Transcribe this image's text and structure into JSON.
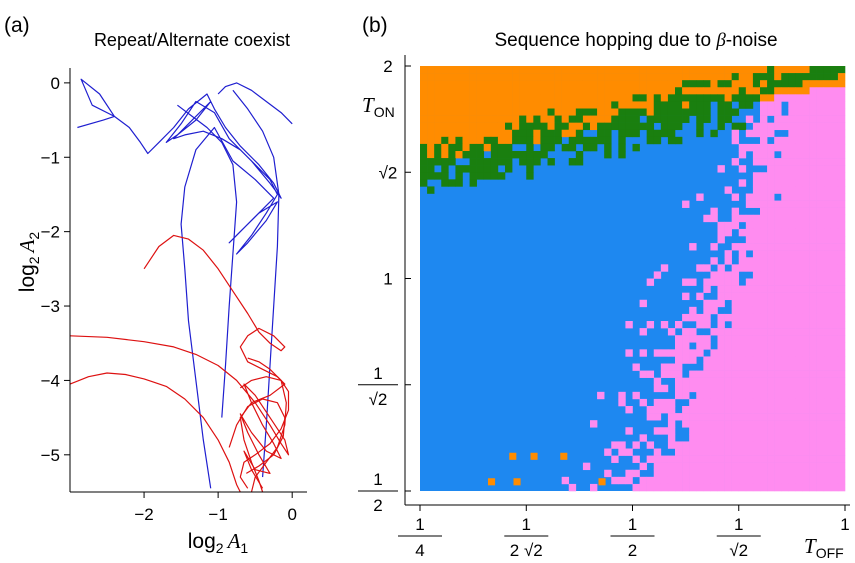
{
  "colors": {
    "orange": "#ff8c00",
    "green": "#1a7f0f",
    "blue": "#1e88f0",
    "pink": "#ff8cf0",
    "line_blue": "#1f1fd0",
    "line_red": "#dd1111"
  },
  "panel_labels": {
    "a": "(a)",
    "b": "(b)"
  },
  "chart_data": [
    {
      "type": "line",
      "title": "Repeat/Alternate coexist",
      "xlabel": {
        "main": "log",
        "sub": "2",
        "var": "A",
        "varsub": "1"
      },
      "ylabel": {
        "main": "log",
        "sub": "2",
        "var": "A",
        "varsub": "2"
      },
      "xlim": [
        -3,
        0.2
      ],
      "ylim": [
        -5.5,
        0.2
      ],
      "xticks": [
        {
          "v": -2,
          "label": "−2"
        },
        {
          "v": -1,
          "label": "−1"
        },
        {
          "v": 0,
          "label": "0"
        }
      ],
      "yticks": [
        {
          "v": 0,
          "label": "0"
        },
        {
          "v": -1,
          "label": "−1"
        },
        {
          "v": -2,
          "label": "−2"
        },
        {
          "v": -3,
          "label": "−3"
        },
        {
          "v": -4,
          "label": "−4"
        },
        {
          "v": -5,
          "label": "−5"
        }
      ],
      "series": [
        {
          "color": "blue",
          "points": [
            [
              -2.9,
              -0.6
            ],
            [
              -2.55,
              -0.5
            ],
            [
              -2.4,
              -0.45
            ],
            [
              -2.6,
              -0.15
            ],
            [
              -2.85,
              0.05
            ],
            [
              -2.7,
              -0.3
            ],
            [
              -2.4,
              -0.45
            ],
            [
              -2.2,
              -0.6
            ],
            [
              -2.05,
              -0.8
            ],
            [
              -1.95,
              -0.95
            ],
            [
              -1.8,
              -0.8
            ],
            [
              -1.6,
              -0.6
            ],
            [
              -1.4,
              -0.35
            ],
            [
              -1.15,
              -0.15
            ],
            [
              -1.05,
              -0.35
            ],
            [
              -0.9,
              -0.6
            ],
            [
              -0.7,
              -0.85
            ],
            [
              -0.45,
              -1.1
            ],
            [
              -0.25,
              -1.35
            ],
            [
              -0.15,
              -1.55
            ],
            [
              -0.3,
              -1.35
            ],
            [
              -0.55,
              -1.05
            ],
            [
              -0.85,
              -0.75
            ],
            [
              -1.05,
              -0.4
            ],
            [
              -1.3,
              -0.25
            ],
            [
              -1.5,
              -0.55
            ],
            [
              -1.7,
              -0.8
            ],
            [
              -1.55,
              -0.7
            ],
            [
              -1.3,
              -0.5
            ],
            [
              -1.1,
              -0.25
            ],
            [
              -1.35,
              -0.5
            ],
            [
              -1.6,
              -0.75
            ],
            [
              -1.45,
              -0.7
            ],
            [
              -1.2,
              -0.65
            ],
            [
              -0.95,
              -0.75
            ],
            [
              -0.7,
              -0.9
            ],
            [
              -0.5,
              -1.1
            ],
            [
              -0.3,
              -1.3
            ],
            [
              -0.2,
              -1.5
            ],
            [
              -0.35,
              -1.75
            ],
            [
              -0.55,
              -2.05
            ],
            [
              -0.75,
              -2.3
            ],
            [
              -0.6,
              -2.15
            ],
            [
              -0.35,
              -1.85
            ],
            [
              -0.2,
              -1.6
            ],
            [
              -0.45,
              -1.75
            ],
            [
              -0.7,
              -2.0
            ],
            [
              -0.85,
              -2.15
            ],
            [
              -0.65,
              -1.95
            ],
            [
              -0.4,
              -1.7
            ],
            [
              -0.25,
              -1.55
            ],
            [
              -0.5,
              -1.3
            ],
            [
              -0.8,
              -1.05
            ],
            [
              -1.05,
              -0.6
            ],
            [
              -1.3,
              -0.9
            ],
            [
              -1.45,
              -1.4
            ],
            [
              -1.5,
              -1.9
            ],
            [
              -1.45,
              -2.5
            ],
            [
              -1.4,
              -3.2
            ],
            [
              -1.3,
              -4.0
            ],
            [
              -1.2,
              -4.8
            ],
            [
              -1.1,
              -5.45
            ]
          ]
        },
        {
          "color": "blue",
          "points": [
            [
              -0.8,
              -0.1
            ],
            [
              -0.6,
              -0.35
            ],
            [
              -0.4,
              -0.65
            ],
            [
              -0.25,
              -1.0
            ],
            [
              -0.18,
              -1.5
            ],
            [
              -0.2,
              -2.2
            ],
            [
              -0.25,
              -3.0
            ],
            [
              -0.3,
              -3.8
            ],
            [
              -0.35,
              -4.6
            ],
            [
              -0.4,
              -5.3
            ]
          ]
        },
        {
          "color": "blue",
          "points": [
            [
              -1.0,
              -0.15
            ],
            [
              -0.9,
              -0.05
            ],
            [
              -0.75,
              0.0
            ],
            [
              -0.55,
              -0.1
            ],
            [
              -0.35,
              -0.25
            ],
            [
              -0.15,
              -0.4
            ],
            [
              0.0,
              -0.55
            ]
          ]
        },
        {
          "color": "blue",
          "points": [
            [
              -1.55,
              -0.3
            ],
            [
              -1.35,
              -0.45
            ],
            [
              -1.15,
              -0.6
            ],
            [
              -0.95,
              -0.8
            ],
            [
              -0.8,
              -1.1
            ],
            [
              -0.75,
              -1.6
            ],
            [
              -0.8,
              -2.3
            ],
            [
              -0.85,
              -3.0
            ],
            [
              -0.9,
              -3.8
            ],
            [
              -0.95,
              -4.5
            ]
          ]
        },
        {
          "color": "red",
          "points": [
            [
              -2.0,
              -2.5
            ],
            [
              -1.8,
              -2.2
            ],
            [
              -1.6,
              -2.05
            ],
            [
              -1.4,
              -2.1
            ],
            [
              -1.2,
              -2.25
            ],
            [
              -1.0,
              -2.5
            ],
            [
              -0.8,
              -2.8
            ],
            [
              -0.6,
              -3.1
            ],
            [
              -0.45,
              -3.35
            ],
            [
              -0.3,
              -3.5
            ],
            [
              -0.15,
              -3.6
            ],
            [
              -0.1,
              -3.55
            ],
            [
              -0.25,
              -3.4
            ],
            [
              -0.45,
              -3.3
            ],
            [
              -0.6,
              -3.4
            ],
            [
              -0.7,
              -3.55
            ],
            [
              -0.6,
              -3.75
            ],
            [
              -0.4,
              -3.85
            ],
            [
              -0.2,
              -3.95
            ],
            [
              -0.1,
              -4.05
            ],
            [
              -0.3,
              -4.2
            ],
            [
              -0.55,
              -4.3
            ],
            [
              -0.7,
              -4.5
            ],
            [
              -0.65,
              -4.8
            ],
            [
              -0.55,
              -5.1
            ],
            [
              -0.45,
              -5.35
            ],
            [
              -0.4,
              -5.5
            ]
          ]
        },
        {
          "color": "red",
          "points": [
            [
              -3.0,
              -3.4
            ],
            [
              -2.5,
              -3.42
            ],
            [
              -2.0,
              -3.48
            ],
            [
              -1.6,
              -3.55
            ],
            [
              -1.3,
              -3.65
            ],
            [
              -1.0,
              -3.8
            ],
            [
              -0.75,
              -4.0
            ],
            [
              -0.5,
              -4.3
            ],
            [
              -0.3,
              -4.6
            ],
            [
              -0.15,
              -4.85
            ],
            [
              -0.05,
              -5.0
            ],
            [
              -0.1,
              -4.8
            ],
            [
              -0.3,
              -4.5
            ],
            [
              -0.5,
              -4.2
            ],
            [
              -0.65,
              -4.05
            ],
            [
              -0.55,
              -4.3
            ],
            [
              -0.4,
              -4.6
            ],
            [
              -0.25,
              -4.85
            ],
            [
              -0.15,
              -5.05
            ],
            [
              -0.35,
              -4.95
            ],
            [
              -0.55,
              -4.7
            ],
            [
              -0.7,
              -4.45
            ],
            [
              -0.6,
              -4.7
            ],
            [
              -0.45,
              -5.0
            ],
            [
              -0.3,
              -5.25
            ],
            [
              -0.5,
              -5.2
            ],
            [
              -0.65,
              -4.95
            ],
            [
              -0.55,
              -5.2
            ],
            [
              -0.4,
              -5.45
            ]
          ]
        },
        {
          "color": "red",
          "points": [
            [
              -3.0,
              -4.05
            ],
            [
              -2.75,
              -3.95
            ],
            [
              -2.5,
              -3.9
            ],
            [
              -2.25,
              -3.92
            ],
            [
              -2.0,
              -3.98
            ],
            [
              -1.7,
              -4.08
            ],
            [
              -1.45,
              -4.25
            ],
            [
              -1.2,
              -4.5
            ],
            [
              -1.0,
              -4.8
            ],
            [
              -0.85,
              -5.1
            ],
            [
              -0.75,
              -5.4
            ],
            [
              -0.7,
              -5.5
            ]
          ]
        },
        {
          "color": "red",
          "points": [
            [
              -0.7,
              -4.1
            ],
            [
              -0.55,
              -4.0
            ],
            [
              -0.35,
              -3.95
            ],
            [
              -0.15,
              -4.0
            ],
            [
              -0.05,
              -4.15
            ],
            [
              -0.05,
              -4.4
            ],
            [
              -0.15,
              -4.65
            ],
            [
              -0.3,
              -4.85
            ],
            [
              -0.5,
              -5.0
            ],
            [
              -0.65,
              -5.1
            ],
            [
              -0.7,
              -5.3
            ],
            [
              -0.6,
              -5.45
            ]
          ]
        },
        {
          "color": "red",
          "points": [
            [
              -0.6,
              -3.7
            ],
            [
              -0.45,
              -3.75
            ],
            [
              -0.3,
              -3.85
            ],
            [
              -0.15,
              -4.0
            ],
            [
              -0.08,
              -4.3
            ],
            [
              -0.1,
              -4.6
            ],
            [
              -0.2,
              -4.9
            ],
            [
              -0.35,
              -5.1
            ],
            [
              -0.5,
              -5.3
            ],
            [
              -0.55,
              -5.5
            ]
          ]
        },
        {
          "color": "red",
          "points": [
            [
              -0.85,
              -4.9
            ],
            [
              -0.75,
              -4.6
            ],
            [
              -0.6,
              -4.35
            ],
            [
              -0.4,
              -4.25
            ],
            [
              -0.2,
              -4.3
            ],
            [
              -0.1,
              -4.5
            ],
            [
              -0.12,
              -4.75
            ],
            [
              -0.25,
              -5.0
            ],
            [
              -0.45,
              -5.15
            ],
            [
              -0.62,
              -5.25
            ]
          ]
        }
      ]
    },
    {
      "type": "heatmap",
      "title": {
        "pre": "Sequence hopping due to ",
        "sym": "β",
        "post": "-noise"
      },
      "xlabel": {
        "var": "T",
        "sub": "OFF"
      },
      "ylabel": {
        "var": "T",
        "sub": "ON"
      },
      "x_scale": "log2",
      "y_scale": "log2",
      "xlim": [
        0.25,
        1.0
      ],
      "ylim": [
        0.5,
        2.0
      ],
      "xticks": [
        {
          "v": 0.25,
          "num": "1",
          "den": "4"
        },
        {
          "v": 0.3536,
          "num": "1",
          "den": "2 √2"
        },
        {
          "v": 0.5,
          "num": "1",
          "den": "2"
        },
        {
          "v": 0.7071,
          "num": "1",
          "den": "√2"
        },
        {
          "v": 1.0,
          "label": "1"
        }
      ],
      "yticks": [
        {
          "v": 0.5,
          "num": "1",
          "den": "2"
        },
        {
          "v": 0.7071,
          "num": "1",
          "den": "√2"
        },
        {
          "v": 1.0,
          "label": "1"
        },
        {
          "v": 1.4142,
          "label": "√2"
        },
        {
          "v": 2.0,
          "label": "2"
        }
      ],
      "grid_size": [
        60,
        60
      ],
      "regions": [
        {
          "name": "orange",
          "description": "upper-left region above the green band"
        },
        {
          "name": "green",
          "description": "noisy band from T_ON≈1.5 at T_OFF=1/4 rising to T_ON≈2 near T_OFF=1"
        },
        {
          "name": "blue",
          "description": "left region below the green band"
        },
        {
          "name": "pink",
          "description": "lower-right region, boundary runs from T_OFF≈0.5 at T_ON=1/2 to T_OFF≈0.72 at T_ON=√2"
        }
      ]
    }
  ]
}
